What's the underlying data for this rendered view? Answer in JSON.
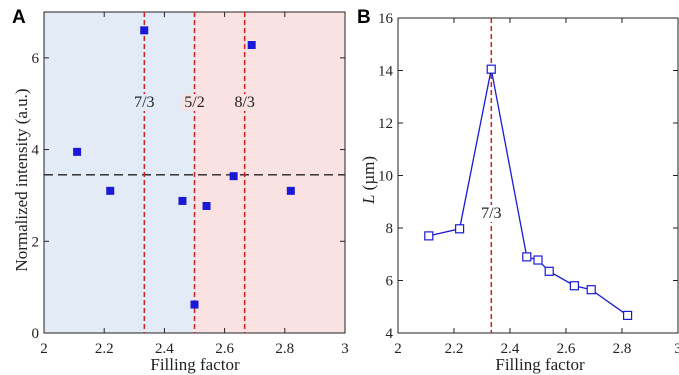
{
  "chart_data": [
    {
      "panel": "A",
      "type": "scatter",
      "xlabel": "Filling factor",
      "ylabel": "Normalized intensity (a.u.)",
      "xlim": [
        2,
        3
      ],
      "ylim": [
        0,
        7
      ],
      "xticks": [
        "2",
        "2.2",
        "2.4",
        "2.6",
        "2.8",
        "3"
      ],
      "yticks": [
        "0",
        "2",
        "4",
        "6"
      ],
      "regions": [
        {
          "x0": 2.0,
          "x1": 2.5,
          "color": "#e3ebf6"
        },
        {
          "x0": 2.5,
          "x1": 3.0,
          "color": "#fbe2e2"
        }
      ],
      "vlines": [
        {
          "x": 2.3333,
          "label": "7/3",
          "color": "#d02020"
        },
        {
          "x": 2.5,
          "label": "5/2",
          "color": "#d02020"
        },
        {
          "x": 2.6667,
          "label": "8/3",
          "color": "#d02020"
        }
      ],
      "hline": {
        "y": 3.45,
        "color": "#222222"
      },
      "marker_color": "#1a1ad6",
      "points": [
        {
          "x": 2.11,
          "y": 3.95
        },
        {
          "x": 2.22,
          "y": 3.1
        },
        {
          "x": 2.333,
          "y": 6.6
        },
        {
          "x": 2.46,
          "y": 2.88
        },
        {
          "x": 2.5,
          "y": 0.62
        },
        {
          "x": 2.54,
          "y": 2.77
        },
        {
          "x": 2.63,
          "y": 3.42
        },
        {
          "x": 2.69,
          "y": 6.28
        },
        {
          "x": 2.82,
          "y": 3.1
        }
      ]
    },
    {
      "panel": "B",
      "type": "line",
      "xlabel": "Filling factor",
      "ylabel_italic": "L",
      "ylabel_rest": " (µm)",
      "xlim": [
        2,
        3
      ],
      "ylim": [
        4,
        16
      ],
      "xticks": [
        "2",
        "2.2",
        "2.4",
        "2.6",
        "2.8",
        "3"
      ],
      "yticks": [
        "4",
        "6",
        "8",
        "10",
        "12",
        "14",
        "16"
      ],
      "vline": {
        "x": 2.3333,
        "label": "7/3",
        "color": "#d02020"
      },
      "series_color": "#1a1ad6",
      "points": [
        {
          "x": 2.11,
          "y": 7.7
        },
        {
          "x": 2.22,
          "y": 7.97
        },
        {
          "x": 2.333,
          "y": 14.05
        },
        {
          "x": 2.46,
          "y": 6.9
        },
        {
          "x": 2.5,
          "y": 6.78
        },
        {
          "x": 2.54,
          "y": 6.35
        },
        {
          "x": 2.63,
          "y": 5.8
        },
        {
          "x": 2.69,
          "y": 5.65
        },
        {
          "x": 2.82,
          "y": 4.67
        }
      ]
    }
  ]
}
